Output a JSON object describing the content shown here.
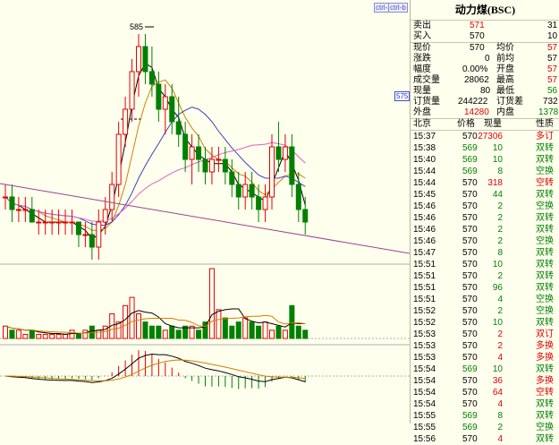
{
  "controls": {
    "left": "ctrl-a",
    "right": "ctrl-b"
  },
  "price_box": "575",
  "peak_label": "585",
  "title": "动力煤(BSC)",
  "quote": {
    "sell_label": "卖出",
    "sell_price": "571",
    "sell_qty": "31",
    "buy_label": "买入",
    "buy_price": "570",
    "buy_qty": "10",
    "r1": {
      "l1": "现价",
      "v1": "570",
      "l2": "均价",
      "v2": "57"
    },
    "r2": {
      "l1": "涨跌",
      "v1": "0",
      "l2": "前均",
      "v2": "57"
    },
    "r3": {
      "l1": "幅度",
      "v1": "0.00%",
      "l2": "开盘",
      "v2": "57"
    },
    "r4": {
      "l1": "成交量",
      "v1": "28062",
      "l2": "最高",
      "v2": "57"
    },
    "r5": {
      "l1": "现量",
      "v1": "80",
      "l2": "最低",
      "v2": "56"
    },
    "r6": {
      "l1": "订货量",
      "v1": "244222",
      "l2": "订货差",
      "v2": "732"
    },
    "r7": {
      "l1": "外盘",
      "v1": "14280",
      "l2": "内盘",
      "v2": "1378"
    }
  },
  "tick_header": {
    "c1": "北京",
    "c2": "价格",
    "c3": "现量",
    "c4": "性质"
  },
  "ticks": [
    {
      "t": "15:37",
      "p": "570",
      "q": "27306",
      "n": "多订",
      "pc": "blk",
      "qc": "red",
      "nc": "red"
    },
    {
      "t": "15:38",
      "p": "569",
      "q": "10",
      "n": "双转",
      "pc": "grn",
      "qc": "grn",
      "nc": "grn"
    },
    {
      "t": "15:40",
      "p": "569",
      "q": "10",
      "n": "双转",
      "pc": "grn",
      "qc": "grn",
      "nc": "grn"
    },
    {
      "t": "15:44",
      "p": "569",
      "q": "8",
      "n": "空换",
      "pc": "grn",
      "qc": "grn",
      "nc": "grn"
    },
    {
      "t": "15:44",
      "p": "570",
      "q": "318",
      "n": "空转",
      "pc": "blk",
      "qc": "red",
      "nc": "red"
    },
    {
      "t": "15:45",
      "p": "570",
      "q": "44",
      "n": "双转",
      "pc": "blk",
      "qc": "grn",
      "nc": "grn"
    },
    {
      "t": "15:46",
      "p": "570",
      "q": "2",
      "n": "空换",
      "pc": "blk",
      "qc": "grn",
      "nc": "grn"
    },
    {
      "t": "15:46",
      "p": "570",
      "q": "2",
      "n": "双转",
      "pc": "blk",
      "qc": "grn",
      "nc": "grn"
    },
    {
      "t": "15:46",
      "p": "570",
      "q": "2",
      "n": "双转",
      "pc": "blk",
      "qc": "grn",
      "nc": "grn"
    },
    {
      "t": "15:46",
      "p": "570",
      "q": "2",
      "n": "空换",
      "pc": "blk",
      "qc": "grn",
      "nc": "grn"
    },
    {
      "t": "15:47",
      "p": "570",
      "q": "8",
      "n": "双转",
      "pc": "blk",
      "qc": "grn",
      "nc": "grn"
    },
    {
      "t": "15:51",
      "p": "570",
      "q": "10",
      "n": "双转",
      "pc": "blk",
      "qc": "grn",
      "nc": "grn"
    },
    {
      "t": "15:51",
      "p": "570",
      "q": "2",
      "n": "双转",
      "pc": "blk",
      "qc": "grn",
      "nc": "grn"
    },
    {
      "t": "15:51",
      "p": "570",
      "q": "96",
      "n": "双转",
      "pc": "blk",
      "qc": "grn",
      "nc": "grn"
    },
    {
      "t": "15:51",
      "p": "570",
      "q": "4",
      "n": "空换",
      "pc": "blk",
      "qc": "grn",
      "nc": "grn"
    },
    {
      "t": "15:52",
      "p": "570",
      "q": "2",
      "n": "空换",
      "pc": "blk",
      "qc": "grn",
      "nc": "grn"
    },
    {
      "t": "15:52",
      "p": "570",
      "q": "10",
      "n": "双转",
      "pc": "blk",
      "qc": "grn",
      "nc": "grn"
    },
    {
      "t": "15:53",
      "p": "570",
      "q": "2",
      "n": "双订",
      "pc": "blk",
      "qc": "red",
      "nc": "red"
    },
    {
      "t": "15:53",
      "p": "570",
      "q": "2",
      "n": "多换",
      "pc": "blk",
      "qc": "red",
      "nc": "red"
    },
    {
      "t": "15:53",
      "p": "570",
      "q": "4",
      "n": "多换",
      "pc": "blk",
      "qc": "red",
      "nc": "red"
    },
    {
      "t": "15:54",
      "p": "569",
      "q": "10",
      "n": "双转",
      "pc": "grn",
      "qc": "grn",
      "nc": "grn"
    },
    {
      "t": "15:54",
      "p": "570",
      "q": "36",
      "n": "多换",
      "pc": "blk",
      "qc": "red",
      "nc": "red"
    },
    {
      "t": "15:54",
      "p": "570",
      "q": "64",
      "n": "空转",
      "pc": "blk",
      "qc": "red",
      "nc": "red"
    },
    {
      "t": "15:54",
      "p": "570",
      "q": "4",
      "n": "双转",
      "pc": "blk",
      "qc": "red",
      "nc": "grn"
    },
    {
      "t": "15:55",
      "p": "569",
      "q": "8",
      "n": "双转",
      "pc": "grn",
      "qc": "grn",
      "nc": "grn"
    },
    {
      "t": "15:55",
      "p": "569",
      "q": "2",
      "n": "空换",
      "pc": "grn",
      "qc": "grn",
      "nc": "grn"
    },
    {
      "t": "15:56",
      "p": "570",
      "q": "4",
      "n": "双转",
      "pc": "blk",
      "qc": "red",
      "nc": "grn"
    }
  ],
  "colors": {
    "bg": "#ffffee",
    "up": "#e00000",
    "down": "#008000",
    "grid": "#b0b0a0"
  },
  "chart_data": {
    "type": "candlestick",
    "candles": [
      [
        572,
        573,
        571,
        572
      ],
      [
        572,
        573,
        570,
        571
      ],
      [
        571,
        572,
        570,
        571
      ],
      [
        571,
        572,
        570,
        571
      ],
      [
        571,
        572,
        570,
        570
      ],
      [
        570,
        571,
        569,
        570
      ],
      [
        570,
        571,
        569,
        570
      ],
      [
        570,
        571,
        569,
        570
      ],
      [
        570,
        571,
        569,
        570
      ],
      [
        570,
        571,
        569,
        570
      ],
      [
        570,
        571,
        569,
        570
      ],
      [
        570,
        570,
        568,
        569
      ],
      [
        569,
        570,
        568,
        569
      ],
      [
        569,
        570,
        567,
        568
      ],
      [
        568,
        571,
        567,
        570
      ],
      [
        570,
        572,
        569,
        571
      ],
      [
        571,
        574,
        570,
        573
      ],
      [
        573,
        578,
        572,
        577
      ],
      [
        577,
        580,
        576,
        579
      ],
      [
        579,
        583,
        578,
        582
      ],
      [
        582,
        585,
        580,
        584
      ],
      [
        584,
        585,
        581,
        582
      ],
      [
        582,
        584,
        580,
        581
      ],
      [
        581,
        582,
        578,
        579
      ],
      [
        579,
        581,
        577,
        580
      ],
      [
        580,
        581,
        577,
        578
      ],
      [
        578,
        580,
        576,
        577
      ],
      [
        577,
        578,
        574,
        575
      ],
      [
        575,
        577,
        573,
        576
      ],
      [
        576,
        577,
        574,
        575
      ],
      [
        575,
        576,
        573,
        574
      ],
      [
        574,
        576,
        573,
        575
      ],
      [
        575,
        576,
        574,
        575
      ],
      [
        575,
        576,
        573,
        574
      ],
      [
        574,
        575,
        572,
        573
      ],
      [
        573,
        574,
        571,
        572
      ],
      [
        572,
        574,
        571,
        573
      ],
      [
        573,
        574,
        571,
        572
      ],
      [
        572,
        573,
        570,
        571
      ],
      [
        571,
        573,
        570,
        572
      ],
      [
        572,
        577,
        571,
        576
      ],
      [
        576,
        578,
        574,
        575
      ],
      [
        575,
        577,
        574,
        576
      ],
      [
        576,
        577,
        572,
        573
      ],
      [
        573,
        574,
        570,
        571
      ],
      [
        571,
        572,
        569,
        570
      ]
    ],
    "volume": [
      3,
      2,
      2,
      1,
      2,
      1,
      1,
      1,
      1,
      1,
      2,
      1,
      2,
      3,
      2,
      3,
      6,
      4,
      8,
      10,
      6,
      4,
      3,
      3,
      2,
      3,
      2,
      3,
      3,
      2,
      4,
      17,
      7,
      5,
      3,
      4,
      5,
      4,
      3,
      4,
      2,
      3,
      2,
      8,
      3,
      2
    ],
    "ylim": [
      567,
      587
    ]
  }
}
